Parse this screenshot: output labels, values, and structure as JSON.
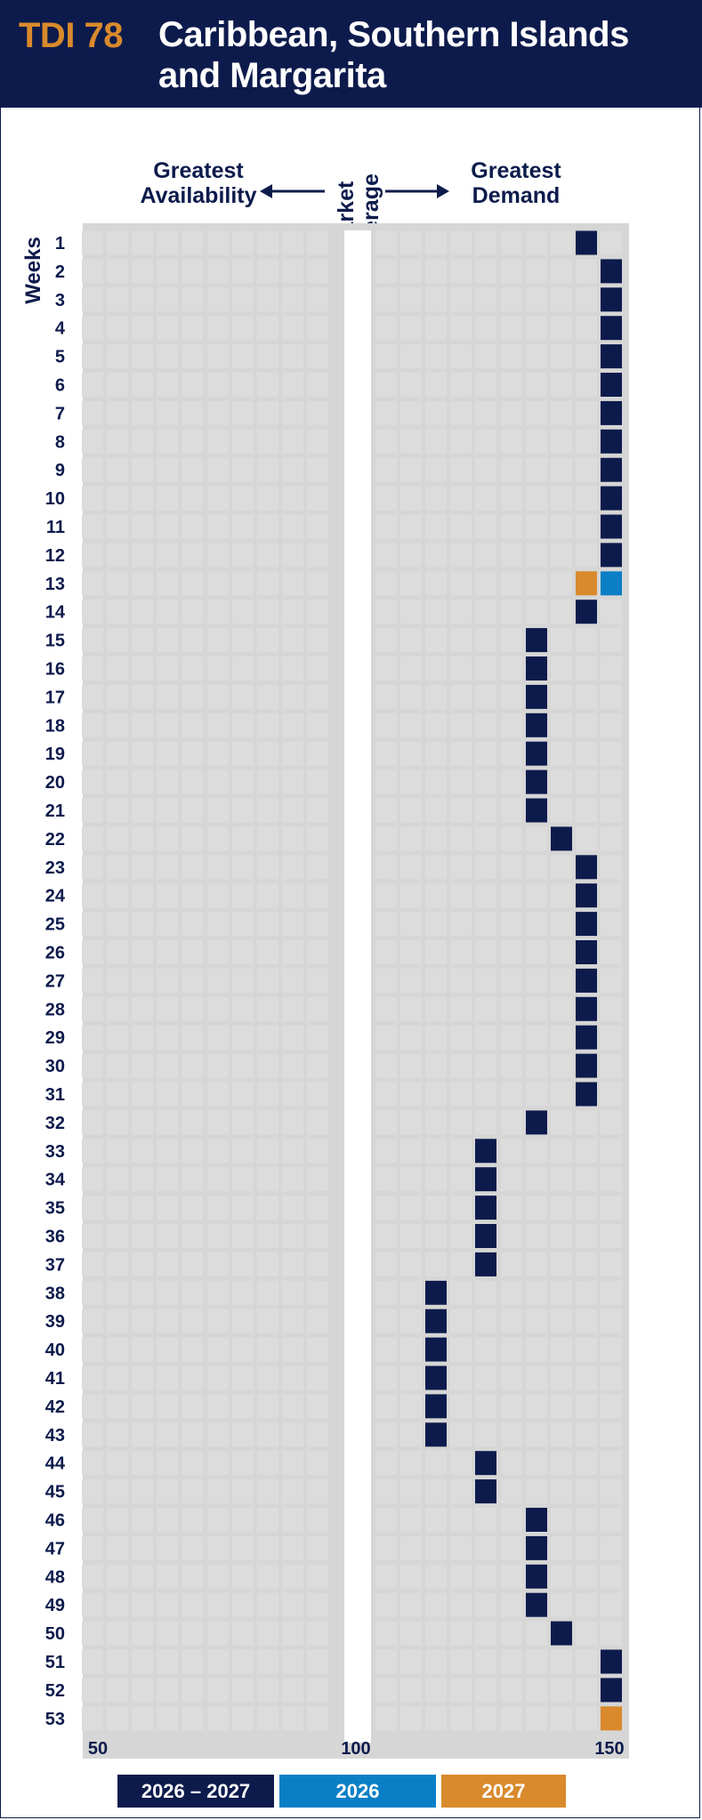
{
  "header": {
    "code": "TDI 78",
    "title": "Caribbean, Southern Islands and Margarita"
  },
  "labels": {
    "greatest_availability": "Greatest Availability",
    "market_average": "Market Average",
    "greatest_demand": "Greatest Demand",
    "weeks_axis": "Weeks"
  },
  "colors": {
    "navy": "#0d1b4c",
    "blue": "#0a7fc6",
    "orange": "#d98a2c",
    "cell": "#dcdcdc",
    "panel": "#d6d6d6"
  },
  "chart_data": {
    "type": "heatmap",
    "xlabel": "",
    "ylabel": "Weeks",
    "x_ticks": [
      50,
      100,
      150
    ],
    "xlim": [
      50,
      150
    ],
    "y_categories": [
      1,
      2,
      3,
      4,
      5,
      6,
      7,
      8,
      9,
      10,
      11,
      12,
      13,
      14,
      15,
      16,
      17,
      18,
      19,
      20,
      21,
      22,
      23,
      24,
      25,
      26,
      27,
      28,
      29,
      30,
      31,
      32,
      33,
      34,
      35,
      36,
      37,
      38,
      39,
      40,
      41,
      42,
      43,
      44,
      45,
      46,
      47,
      48,
      49,
      50,
      51,
      52,
      53
    ],
    "series": [
      {
        "name": "2026 – 2027",
        "color": "#0d1b4c",
        "weeks": [
          1,
          2,
          3,
          4,
          5,
          6,
          7,
          8,
          9,
          10,
          11,
          12,
          14,
          15,
          16,
          17,
          18,
          19,
          20,
          21,
          22,
          23,
          24,
          25,
          26,
          27,
          28,
          29,
          30,
          31,
          32,
          33,
          34,
          35,
          36,
          37,
          38,
          39,
          40,
          41,
          42,
          43,
          44,
          45,
          46,
          47,
          48,
          49,
          50,
          51,
          52
        ],
        "values": [
          145,
          150,
          150,
          150,
          150,
          150,
          150,
          150,
          150,
          150,
          150,
          150,
          145,
          135,
          135,
          135,
          135,
          135,
          135,
          135,
          140,
          145,
          145,
          145,
          145,
          145,
          145,
          145,
          145,
          145,
          135,
          125,
          125,
          125,
          125,
          125,
          115,
          115,
          115,
          115,
          115,
          115,
          125,
          125,
          135,
          135,
          135,
          135,
          140,
          150,
          150
        ]
      },
      {
        "name": "2026",
        "color": "#0a7fc6",
        "weeks": [
          13
        ],
        "values": [
          150
        ]
      },
      {
        "name": "2027",
        "color": "#d98a2c",
        "weeks": [
          13,
          53
        ],
        "values": [
          145,
          150
        ]
      }
    ]
  }
}
